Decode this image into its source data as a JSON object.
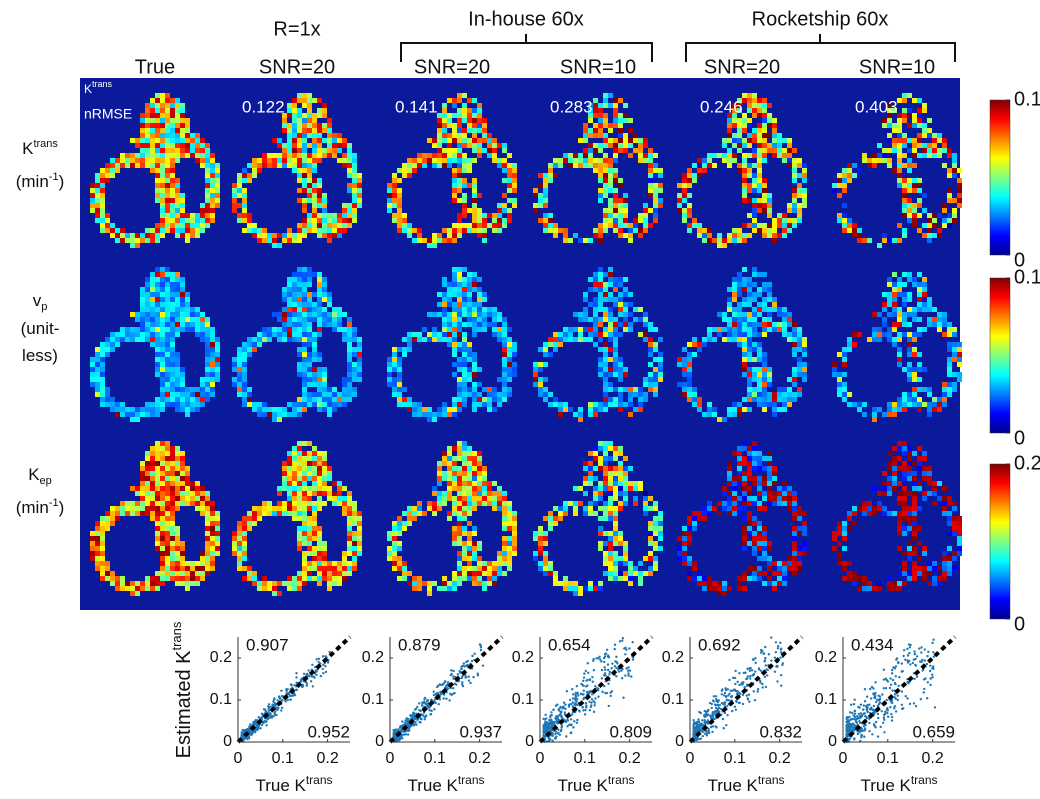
{
  "headers": {
    "groups": [
      "R=1x",
      "In-house 60x",
      "Rocketship 60x"
    ],
    "columns": [
      "True",
      "SNR=20",
      "SNR=20",
      "SNR=10",
      "SNR=20",
      "SNR=10"
    ]
  },
  "image_grid": {
    "legend_label": {
      "base": "K",
      "sup": "trans"
    },
    "legend_metric": "nRMSE",
    "nrmse": [
      0.122,
      0.141,
      0.283,
      0.246,
      0.403
    ],
    "rows": [
      {
        "label": [
          [
            {
              "t": "K"
            },
            {
              "t": "trans",
              "s": "sup"
            }
          ],
          [
            {
              "t": "(min"
            },
            {
              "t": "-1",
              "s": "sup"
            },
            {
              "t": ")"
            }
          ]
        ],
        "clim": [
          0,
          0.1
        ],
        "ticks": [
          0,
          0.1
        ]
      },
      {
        "label": [
          [
            {
              "t": "v"
            },
            {
              "t": "p",
              "s": "sub"
            }
          ],
          [
            {
              "t": "(unit-"
            }
          ],
          [
            {
              "t": "less)"
            }
          ]
        ],
        "clim": [
          0,
          0.1
        ],
        "ticks": [
          0,
          0.1
        ]
      },
      {
        "label": [
          [
            {
              "t": "K"
            },
            {
              "t": "ep",
              "s": "sub"
            }
          ],
          [
            {
              "t": "(min"
            },
            {
              "t": "-1",
              "s": "sup"
            },
            {
              "t": ")"
            }
          ]
        ],
        "clim": [
          0,
          0.2
        ],
        "ticks": [
          0,
          0.2
        ]
      }
    ]
  },
  "scatter": {
    "y_label": {
      "base": "Estimated K",
      "sup": "trans"
    },
    "x_label": {
      "base": "True K",
      "sup": "trans"
    },
    "xlim": [
      0,
      0.25
    ],
    "ylim": [
      0,
      0.25
    ],
    "xticks": [
      0,
      0.1,
      0.2
    ],
    "yticks": [
      0,
      0.1,
      0.2
    ],
    "panels": [
      {
        "top": 0.907,
        "bottom": 0.952
      },
      {
        "top": 0.879,
        "bottom": 0.937
      },
      {
        "top": 0.654,
        "bottom": 0.809
      },
      {
        "top": 0.692,
        "bottom": 0.832
      },
      {
        "top": 0.434,
        "bottom": 0.659
      }
    ]
  }
}
